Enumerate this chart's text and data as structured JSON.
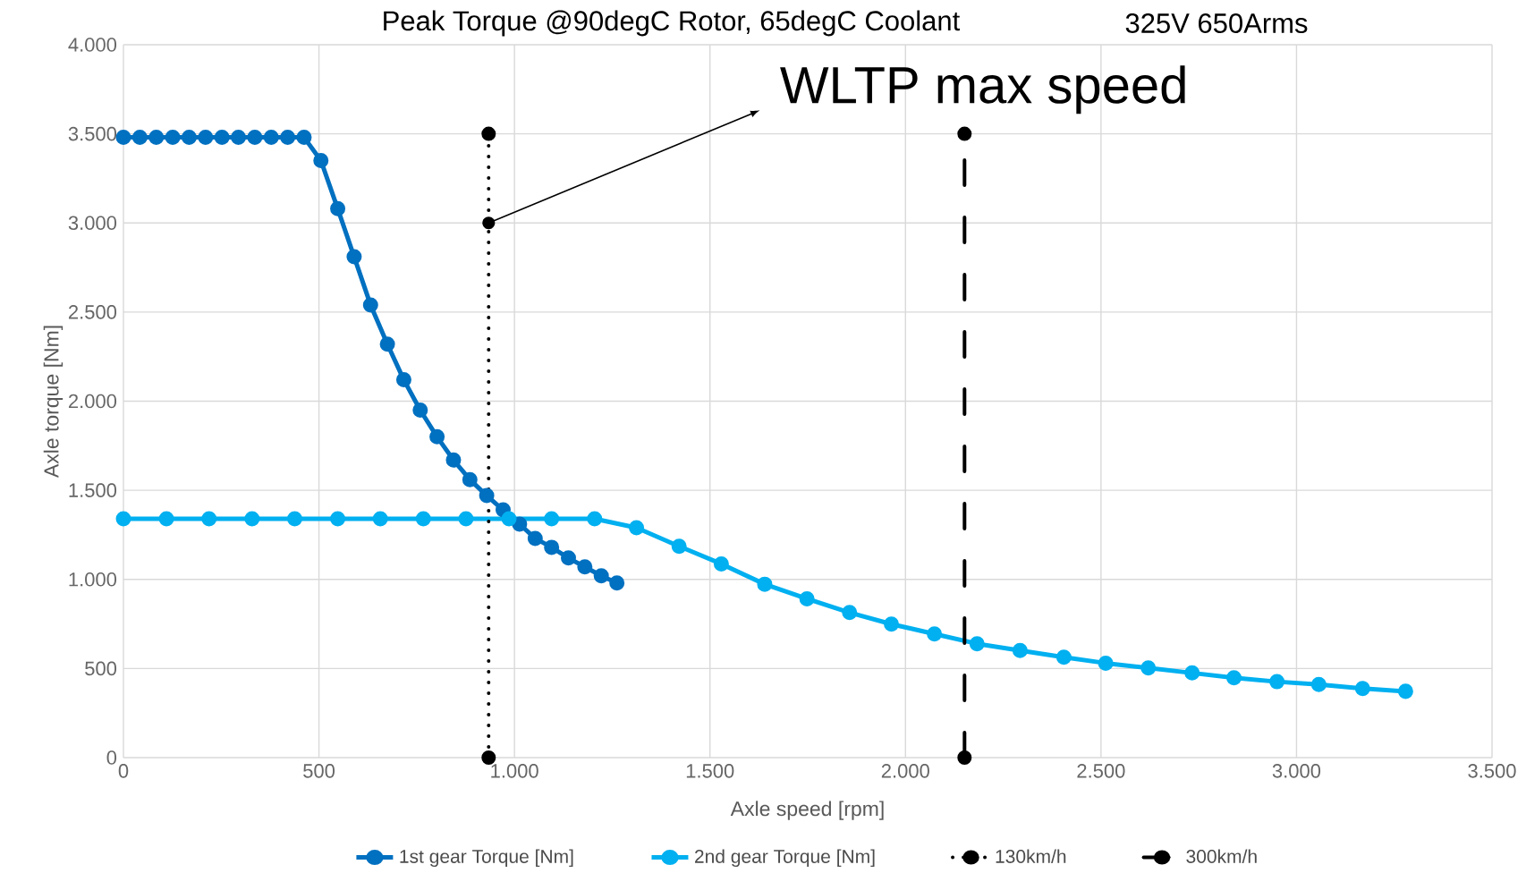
{
  "chart_data": {
    "type": "line",
    "title": "Peak Torque @90degC Rotor, 65degC Coolant",
    "subtitle": "325V 650Arms",
    "xlabel": "Axle speed [rpm]",
    "ylabel": "Axle torque [Nm]",
    "xlim": [
      0,
      3500
    ],
    "ylim": [
      0,
      4000
    ],
    "xticks": [
      0,
      500,
      {
        "value": 1000,
        "label": "1.000"
      },
      {
        "value": 1500,
        "label": "1.500"
      },
      {
        "value": 2000,
        "label": "2.000"
      },
      {
        "value": 2500,
        "label": "2.500"
      },
      {
        "value": 3000,
        "label": "3.000"
      },
      {
        "value": 3500,
        "label": "3.500"
      }
    ],
    "yticks": [
      0,
      500,
      {
        "value": 1000,
        "label": "1.000"
      },
      {
        "value": 1500,
        "label": "1.500"
      },
      {
        "value": 2000,
        "label": "2.000"
      },
      {
        "value": 2500,
        "label": "2.500"
      },
      {
        "value": 3000,
        "label": "3.000"
      },
      {
        "value": 3500,
        "label": "3.500"
      },
      {
        "value": 4000,
        "label": "4.000"
      }
    ],
    "grid": true,
    "legend": "bottom",
    "marker": "circle",
    "series": [
      {
        "name": "1st gear Torque [Nm]",
        "color": "#0070c0",
        "x": [
          0,
          42,
          84,
          126,
          168,
          210,
          252,
          294,
          336,
          378,
          420,
          462,
          505,
          548,
          590,
          632,
          675,
          717,
          759,
          802,
          844,
          886,
          929,
          971,
          1013,
          1053,
          1095,
          1138,
          1180,
          1222,
          1262
        ],
        "values": [
          3480,
          3480,
          3480,
          3480,
          3480,
          3480,
          3480,
          3480,
          3480,
          3480,
          3480,
          3480,
          3350,
          3080,
          2810,
          2540,
          2320,
          2120,
          1950,
          1800,
          1670,
          1560,
          1470,
          1390,
          1310,
          1230,
          1180,
          1120,
          1070,
          1020,
          980
        ]
      },
      {
        "name": "2nd gear Torque [Nm]",
        "color": "#00b0f0",
        "x": [
          0,
          110,
          219,
          329,
          438,
          548,
          657,
          767,
          876,
          986,
          1095,
          1205,
          1312,
          1421,
          1529,
          1640,
          1748,
          1857,
          1964,
          2074,
          2183,
          2293,
          2405,
          2512,
          2621,
          2733,
          2840,
          2950,
          3057,
          3169,
          3279
        ],
        "values": [
          1340,
          1340,
          1340,
          1340,
          1340,
          1340,
          1340,
          1340,
          1340,
          1340,
          1340,
          1340,
          1290,
          1186,
          1087,
          973,
          891,
          814,
          749,
          694,
          639,
          601,
          563,
          530,
          503,
          475,
          448,
          426,
          410,
          388,
          372
        ]
      },
      {
        "name": "130km/h",
        "color": "#000000",
        "line_style": "dotted",
        "x": [
          934,
          934
        ],
        "values": [
          0,
          3500
        ]
      },
      {
        "name": "300km/h",
        "color": "#000000",
        "line_style": "dashdot",
        "x": [
          2151,
          2151
        ],
        "values": [
          0,
          3500
        ]
      }
    ],
    "annotations": [
      {
        "text": "WLTP max speed",
        "x": 934,
        "y": 3000
      }
    ]
  }
}
